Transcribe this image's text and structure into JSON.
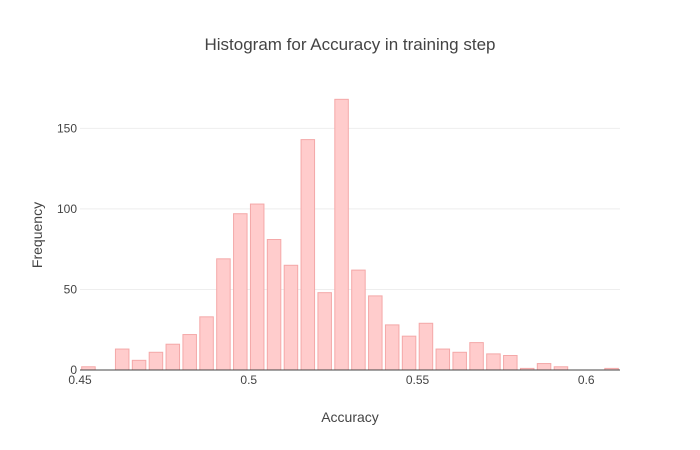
{
  "chart_data": {
    "type": "bar",
    "title": "Histogram for Accuracy in training step",
    "xlabel": "Accuracy",
    "ylabel": "Frequency",
    "xlim": [
      0.45,
      0.61
    ],
    "ylim": [
      0,
      180
    ],
    "bin_width": 0.005,
    "x_ticks": [
      {
        "value": 0.45,
        "label": "0.45"
      },
      {
        "value": 0.5,
        "label": "0.5"
      },
      {
        "value": 0.55,
        "label": "0.55"
      },
      {
        "value": 0.6,
        "label": "0.6"
      }
    ],
    "y_ticks": [
      {
        "value": 0,
        "label": "0"
      },
      {
        "value": 50,
        "label": "50"
      },
      {
        "value": 100,
        "label": "100"
      },
      {
        "value": 150,
        "label": "150"
      }
    ],
    "bins": [
      {
        "x": 0.4525,
        "y": 2
      },
      {
        "x": 0.4575,
        "y": 0
      },
      {
        "x": 0.4625,
        "y": 13
      },
      {
        "x": 0.4675,
        "y": 6
      },
      {
        "x": 0.4725,
        "y": 11
      },
      {
        "x": 0.4775,
        "y": 16
      },
      {
        "x": 0.4825,
        "y": 22
      },
      {
        "x": 0.4875,
        "y": 33
      },
      {
        "x": 0.4925,
        "y": 69
      },
      {
        "x": 0.4975,
        "y": 97
      },
      {
        "x": 0.5025,
        "y": 103
      },
      {
        "x": 0.5075,
        "y": 81
      },
      {
        "x": 0.5125,
        "y": 65
      },
      {
        "x": 0.5175,
        "y": 143
      },
      {
        "x": 0.5225,
        "y": 48
      },
      {
        "x": 0.5275,
        "y": 168
      },
      {
        "x": 0.5325,
        "y": 62
      },
      {
        "x": 0.5375,
        "y": 46
      },
      {
        "x": 0.5425,
        "y": 28
      },
      {
        "x": 0.5475,
        "y": 21
      },
      {
        "x": 0.5525,
        "y": 29
      },
      {
        "x": 0.5575,
        "y": 13
      },
      {
        "x": 0.5625,
        "y": 11
      },
      {
        "x": 0.5675,
        "y": 17
      },
      {
        "x": 0.5725,
        "y": 10
      },
      {
        "x": 0.5775,
        "y": 9
      },
      {
        "x": 0.5825,
        "y": 1
      },
      {
        "x": 0.5875,
        "y": 4
      },
      {
        "x": 0.5925,
        "y": 2
      },
      {
        "x": 0.5975,
        "y": 0
      },
      {
        "x": 0.6025,
        "y": 0
      },
      {
        "x": 0.6075,
        "y": 1
      }
    ],
    "grid": true,
    "legend": "none",
    "bar_fill": "#ffcccc",
    "bar_stroke": "#f4a8a8"
  }
}
